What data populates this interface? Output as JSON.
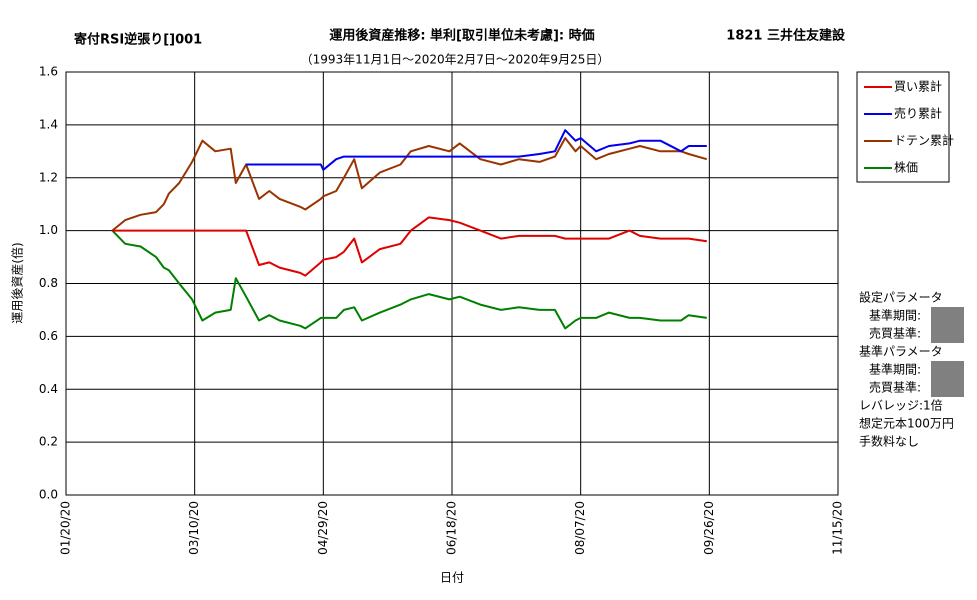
{
  "chart_data": {
    "type": "line",
    "header_left": "寄付RSI逆張り[]001",
    "title": "運用後資産推移: 単利[取引単位未考慮]: 時価",
    "subtitle": "（1993年11月1日～2020年2月7日～2020年9月25日）",
    "header_right": "1821 三井住友建設",
    "y_label": "運用後資産(倍)",
    "x_label": "日付",
    "x": [
      "2020-02-07",
      "2020-02-12",
      "2020-02-18",
      "2020-02-24",
      "2020-02-27",
      "2020-02-29",
      "2020-03-04",
      "2020-03-09",
      "2020-03-13",
      "2020-03-18",
      "2020-03-24",
      "2020-03-26",
      "2020-03-30",
      "2020-04-04",
      "2020-04-08",
      "2020-04-12",
      "2020-04-20",
      "2020-04-22",
      "2020-04-28",
      "2020-04-29",
      "2020-05-04",
      "2020-05-07",
      "2020-05-11",
      "2020-05-14",
      "2020-05-21",
      "2020-05-29",
      "2020-06-02",
      "2020-06-09",
      "2020-06-17",
      "2020-06-21",
      "2020-06-29",
      "2020-07-07",
      "2020-07-14",
      "2020-07-22",
      "2020-07-28",
      "2020-08-01",
      "2020-08-05",
      "2020-08-07",
      "2020-08-13",
      "2020-08-18",
      "2020-08-26",
      "2020-08-30",
      "2020-09-07",
      "2020-09-15",
      "2020-09-18",
      "2020-09-25"
    ],
    "series": [
      {
        "name": "買い累計",
        "color": "#e00000",
        "values": [
          1,
          1,
          1,
          1,
          1,
          1,
          1,
          1,
          1,
          1,
          1,
          1,
          1,
          0.87,
          0.88,
          0.86,
          0.84,
          0.83,
          0.88,
          0.89,
          0.9,
          0.92,
          0.97,
          0.88,
          0.93,
          0.95,
          1.0,
          1.05,
          1.04,
          1.03,
          1.0,
          0.97,
          0.98,
          0.98,
          0.98,
          0.97,
          0.97,
          0.97,
          0.97,
          0.97,
          1.0,
          0.98,
          0.97,
          0.97,
          0.97,
          0.96
        ]
      },
      {
        "name": "売り累計",
        "color": "#0000ee",
        "values": [
          null,
          null,
          null,
          null,
          null,
          null,
          null,
          null,
          null,
          null,
          null,
          null,
          1.25,
          1.25,
          1.25,
          1.25,
          1.25,
          1.25,
          1.25,
          1.23,
          1.27,
          1.28,
          1.28,
          1.28,
          1.28,
          1.28,
          1.28,
          1.28,
          1.28,
          1.28,
          1.28,
          1.28,
          1.28,
          1.29,
          1.3,
          1.38,
          1.34,
          1.35,
          1.3,
          1.32,
          1.33,
          1.34,
          1.34,
          1.3,
          1.32,
          1.32
        ]
      },
      {
        "name": "ドテン累計",
        "color": "#993300",
        "values": [
          1.0,
          1.04,
          1.06,
          1.07,
          1.1,
          1.14,
          1.18,
          1.26,
          1.34,
          1.3,
          1.31,
          1.18,
          1.25,
          1.12,
          1.15,
          1.12,
          1.09,
          1.08,
          1.12,
          1.13,
          1.15,
          1.2,
          1.27,
          1.16,
          1.22,
          1.25,
          1.3,
          1.32,
          1.3,
          1.33,
          1.27,
          1.25,
          1.27,
          1.26,
          1.28,
          1.35,
          1.3,
          1.32,
          1.27,
          1.29,
          1.31,
          1.32,
          1.3,
          1.3,
          1.29,
          1.27
        ]
      },
      {
        "name": "株価",
        "color": "#008000",
        "values": [
          1.0,
          0.95,
          0.94,
          0.9,
          0.86,
          0.85,
          0.8,
          0.74,
          0.66,
          0.69,
          0.7,
          0.82,
          0.75,
          0.66,
          0.68,
          0.66,
          0.64,
          0.63,
          0.67,
          0.67,
          0.67,
          0.7,
          0.71,
          0.66,
          0.69,
          0.72,
          0.74,
          0.76,
          0.74,
          0.75,
          0.72,
          0.7,
          0.71,
          0.7,
          0.7,
          0.63,
          0.66,
          0.67,
          0.67,
          0.69,
          0.67,
          0.67,
          0.66,
          0.66,
          0.68,
          0.67
        ]
      }
    ],
    "xlim": [
      "2020-01-20",
      "2020-11-15"
    ],
    "xticks": [
      {
        "value": "2020-01-20",
        "label": "01/20/20"
      },
      {
        "value": "2020-03-10",
        "label": "03/10/20"
      },
      {
        "value": "2020-04-29",
        "label": "04/29/20"
      },
      {
        "value": "2020-06-18",
        "label": "06/18/20"
      },
      {
        "value": "2020-08-07",
        "label": "08/07/20"
      },
      {
        "value": "2020-09-26",
        "label": "09/26/20"
      },
      {
        "value": "2020-11-15",
        "label": "11/15/20"
      }
    ],
    "ylim": [
      0,
      1.6
    ],
    "yticks": [
      {
        "value": 0,
        "label": "0.0"
      },
      0.2,
      0.4,
      0.6,
      0.8,
      {
        "value": 1,
        "label": "1.0"
      },
      1.2,
      1.4,
      1.6
    ],
    "grid": true,
    "legend": "right"
  },
  "side_panel": {
    "groups": [
      {
        "heading": "設定パラメータ",
        "items": [
          "基準期間:",
          "売買基準:"
        ]
      },
      {
        "heading": "基準パラメータ",
        "items": [
          "基準期間:",
          "売買基準:"
        ]
      }
    ],
    "notes": [
      "レバレッジ:1倍",
      "想定元本100万円",
      "手数料なし"
    ]
  }
}
